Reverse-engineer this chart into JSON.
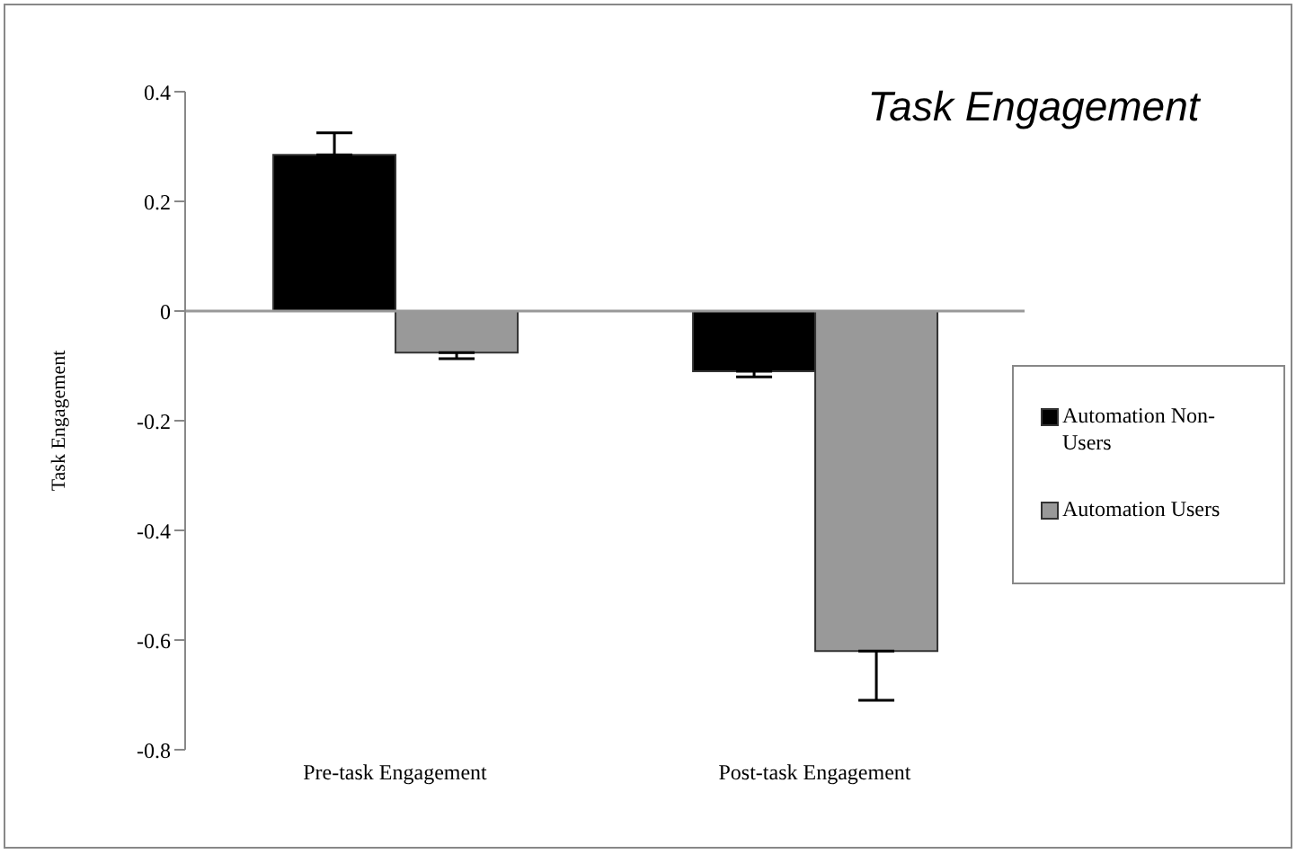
{
  "chart_data": {
    "type": "bar",
    "title": "Task Engagement",
    "ylabel": "Task Engagement",
    "categories": [
      "Pre-task Engagement",
      "Post-task  Engagement"
    ],
    "series": [
      {
        "name": "Automation Non-Users",
        "color": "#000000",
        "values": [
          0.285,
          -0.11
        ],
        "errors": [
          [
            0.285,
            0.325
          ],
          [
            -0.12,
            -0.11
          ]
        ]
      },
      {
        "name": "Automation Users",
        "color": "#999999",
        "values": [
          -0.076,
          -0.62
        ],
        "errors": [
          [
            -0.087,
            -0.076
          ],
          [
            -0.71,
            -0.62
          ]
        ]
      }
    ],
    "ylim": [
      -0.8,
      0.4
    ],
    "yticks": [
      -0.8,
      -0.6,
      -0.4,
      -0.2,
      0,
      0.2,
      0.4
    ],
    "ref_lines": [
      {
        "axis": "y",
        "value": 0,
        "color": "#999999"
      }
    ],
    "legend": "right"
  }
}
